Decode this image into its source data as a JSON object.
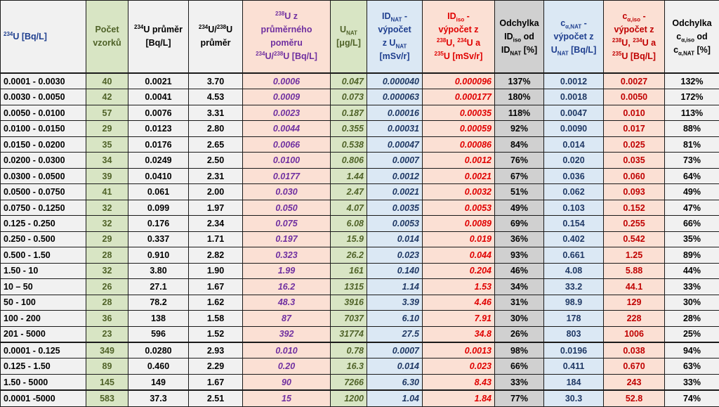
{
  "headers": {
    "h0": {
      "sup": "234",
      "text": "U [Bq/L]"
    },
    "h1": {
      "line1": "Počet",
      "line2": "vzorků"
    },
    "h2": {
      "sup": "234",
      "line1": "U průměr",
      "line2": "[Bq/L]"
    },
    "h3": {
      "sup1": "234",
      "mid": "U/",
      "sup2": "238",
      "end": "U",
      "line2": "průměr"
    },
    "h4": {
      "sup1": "238",
      "line1": "U z",
      "line2": "průměrného",
      "line3": "poměru",
      "sup2": "234",
      "mid": "U/",
      "sup3": "238",
      "end": "U [Bq/L]"
    },
    "h5": {
      "pre": "U",
      "sub": "NAT",
      "line2": "[μg/L]"
    },
    "h6": {
      "pre": "ID",
      "sub": "NAT",
      "post": " -",
      "line2": "výpočet",
      "line3a": "z U",
      "sub2": "NAT",
      "line4": "[mSv/r]"
    },
    "h7": {
      "pre": "ID",
      "sub": "iso",
      "post": " -",
      "line2": "výpočet z",
      "sup1": "238",
      "line3a": "U, ",
      "sup2": "234",
      "line3b": "U a",
      "sup3": "235",
      "line4": "U [mSv/r]"
    },
    "h8": {
      "line1": "Odchylka",
      "pre2": "ID",
      "sub1": "iso",
      "line2b": " od",
      "pre3": "ID",
      "sub2": "NAT",
      "line3b": " [%]"
    },
    "h9": {
      "pre": "c",
      "sub": "α,NAT",
      "post": " -",
      "line2": "výpočet z",
      "line3a": "U",
      "sub2": "NAT",
      "line3b": " [Bq/L]"
    },
    "h10": {
      "pre": "c",
      "sub": "α,iso",
      "post": " -",
      "line2": "výpočet z",
      "sup1": "238",
      "line3a": "U, ",
      "sup2": "234",
      "line3b": "U a",
      "sup3": "235",
      "line4": "U [Bq/L]"
    },
    "h11": {
      "line1": "Odchylka",
      "pre2": "c",
      "sub1": "α,iso",
      "line2b": " od",
      "pre3": "c",
      "sub2": "α,NAT",
      "line3b": " [%]"
    }
  },
  "rows": [
    [
      "0.0001 - 0.0030",
      "40",
      "0.0021",
      "3.70",
      "0.0006",
      "0.047",
      "0.000040",
      "0.000096",
      "137%",
      "0.0012",
      "0.0027",
      "132%"
    ],
    [
      "0.0030 - 0.0050",
      "42",
      "0.0041",
      "4.53",
      "0.0009",
      "0.073",
      "0.000063",
      "0.000177",
      "180%",
      "0.0018",
      "0.0050",
      "172%"
    ],
    [
      "0.0050 - 0.0100",
      "57",
      "0.0076",
      "3.31",
      "0.0023",
      "0.187",
      "0.00016",
      "0.00035",
      "118%",
      "0.0047",
      "0.010",
      "113%"
    ],
    [
      "0.0100 - 0.0150",
      "29",
      "0.0123",
      "2.80",
      "0.0044",
      "0.355",
      "0.00031",
      "0.00059",
      "92%",
      "0.0090",
      "0.017",
      "88%"
    ],
    [
      "0.0150 - 0.0200",
      "35",
      "0.0176",
      "2.65",
      "0.0066",
      "0.538",
      "0.00047",
      "0.00086",
      "84%",
      "0.014",
      "0.025",
      "81%"
    ],
    [
      "0.0200 - 0.0300",
      "34",
      "0.0249",
      "2.50",
      "0.0100",
      "0.806",
      "0.0007",
      "0.0012",
      "76%",
      "0.020",
      "0.035",
      "73%"
    ],
    [
      "0.0300 - 0.0500",
      "39",
      "0.0410",
      "2.31",
      "0.0177",
      "1.44",
      "0.0012",
      "0.0021",
      "67%",
      "0.036",
      "0.060",
      "64%"
    ],
    [
      "0.0500 - 0.0750",
      "41",
      "0.061",
      "2.00",
      "0.030",
      "2.47",
      "0.0021",
      "0.0032",
      "51%",
      "0.062",
      "0.093",
      "49%"
    ],
    [
      "0.0750 - 0.1250",
      "32",
      "0.099",
      "1.97",
      "0.050",
      "4.07",
      "0.0035",
      "0.0053",
      "49%",
      "0.103",
      "0.152",
      "47%"
    ],
    [
      "0.125 - 0.250",
      "32",
      "0.176",
      "2.34",
      "0.075",
      "6.08",
      "0.0053",
      "0.0089",
      "69%",
      "0.154",
      "0.255",
      "66%"
    ],
    [
      "0.250 - 0.500",
      "29",
      "0.337",
      "1.71",
      "0.197",
      "15.9",
      "0.014",
      "0.019",
      "36%",
      "0.402",
      "0.542",
      "35%"
    ],
    [
      "0.500 - 1.50",
      "28",
      "0.910",
      "2.82",
      "0.323",
      "26.2",
      "0.023",
      "0.044",
      "93%",
      "0.661",
      "1.25",
      "89%"
    ],
    [
      "1.50 - 10",
      "32",
      "3.80",
      "1.90",
      "1.99",
      "161",
      "0.140",
      "0.204",
      "46%",
      "4.08",
      "5.88",
      "44%"
    ],
    [
      "10 – 50",
      "26",
      "27.1",
      "1.67",
      "16.2",
      "1315",
      "1.14",
      "1.53",
      "34%",
      "33.2",
      "44.1",
      "33%"
    ],
    [
      "50 - 100",
      "28",
      "78.2",
      "1.62",
      "48.3",
      "3916",
      "3.39",
      "4.46",
      "31%",
      "98.9",
      "129",
      "30%"
    ],
    [
      "100 - 200",
      "36",
      "138",
      "1.58",
      "87",
      "7037",
      "6.10",
      "7.91",
      "30%",
      "178",
      "228",
      "28%"
    ],
    [
      "201 - 5000",
      "23",
      "596",
      "1.52",
      "392",
      "31774",
      "27.5",
      "34.8",
      "26%",
      "803",
      "1006",
      "25%"
    ],
    [
      "0.0001 - 0.125",
      "349",
      "0.0280",
      "2.93",
      "0.010",
      "0.78",
      "0.0007",
      "0.0013",
      "98%",
      "0.0196",
      "0.038",
      "94%"
    ],
    [
      "0.125 - 1.50",
      "89",
      "0.460",
      "2.29",
      "0.20",
      "16.3",
      "0.014",
      "0.023",
      "66%",
      "0.411",
      "0.670",
      "63%"
    ],
    [
      "1.50 - 5000",
      "145",
      "149",
      "1.67",
      "90",
      "7266",
      "6.30",
      "8.43",
      "33%",
      "184",
      "243",
      "33%"
    ],
    [
      "0.0001 -5000",
      "583",
      "37.3",
      "2.51",
      "15",
      "1200",
      "1.04",
      "1.84",
      "77%",
      "30.3",
      "52.8",
      "74%"
    ]
  ],
  "separator_rows": [
    17,
    20
  ]
}
